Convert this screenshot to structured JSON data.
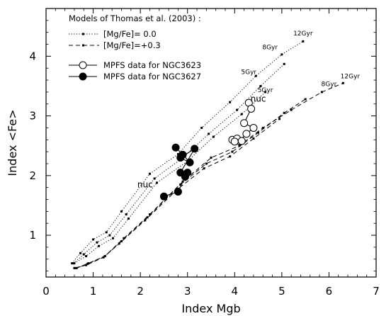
{
  "chart_data": {
    "type": "scatter",
    "xlabel": "Index Mgb",
    "ylabel": "Index <Fe>",
    "xlim": [
      0,
      7
    ],
    "ylim": [
      0.3,
      4.8
    ],
    "x_ticks": [
      0,
      1,
      2,
      3,
      4,
      5,
      6,
      7
    ],
    "y_ticks": [
      1,
      2,
      3,
      4
    ],
    "grid": false,
    "legend": {
      "title": "Models of Thomas et al. (2003) :",
      "placement": "top-left",
      "entries": [
        {
          "label": "[Mg/Fe]= 0.0",
          "style": "dotted"
        },
        {
          "label": "[Mg/Fe]=+0.3",
          "style": "dashed"
        },
        {
          "label": "MPFS data for NGC3623",
          "style": "open-circle"
        },
        {
          "label": "MPFS data for NGC3627",
          "style": "filled-circle"
        }
      ]
    },
    "model_tracks": [
      {
        "group": "[Mg/Fe]= 0.0",
        "style": "dotted",
        "x": [
          0.55,
          0.73,
          1.0,
          1.28,
          1.6,
          2.2,
          2.8,
          3.3,
          3.9,
          4.45,
          5.0,
          5.45
        ],
        "y": [
          0.53,
          0.7,
          0.93,
          1.05,
          1.4,
          2.03,
          2.36,
          2.8,
          3.23,
          3.67,
          4.03,
          4.25
        ]
      },
      {
        "group": "[Mg/Fe]= 0.0",
        "style": "dotted",
        "x": [
          0.58,
          0.8,
          1.08,
          1.35,
          1.7,
          2.3,
          2.9,
          3.45,
          4.05,
          4.55,
          5.05
        ],
        "y": [
          0.53,
          0.68,
          0.88,
          1.0,
          1.35,
          1.95,
          2.3,
          2.7,
          3.1,
          3.5,
          3.87
        ]
      },
      {
        "group": "[Mg/Fe]= 0.0",
        "style": "dotted",
        "x": [
          0.6,
          0.85,
          1.12,
          1.42,
          1.75,
          2.35,
          3.0,
          3.55,
          4.15,
          4.65
        ],
        "y": [
          0.53,
          0.65,
          0.82,
          0.95,
          1.28,
          1.88,
          2.24,
          2.65,
          3.03,
          3.4
        ]
      },
      {
        "group": "[Mg/Fe]=+0.3",
        "style": "dashed",
        "x": [
          0.65,
          0.9,
          1.25,
          1.65,
          2.2,
          2.9,
          3.5,
          4.1,
          4.6,
          5.2,
          5.85,
          6.3
        ],
        "y": [
          0.45,
          0.53,
          0.65,
          0.95,
          1.35,
          1.9,
          2.3,
          2.5,
          2.8,
          3.1,
          3.4,
          3.55
        ]
      },
      {
        "group": "[Mg/Fe]=+0.3",
        "style": "dashed",
        "x": [
          0.62,
          0.88,
          1.25,
          1.6,
          2.15,
          2.85,
          3.4,
          3.95,
          4.5,
          5.05,
          5.5
        ],
        "y": [
          0.45,
          0.52,
          0.65,
          0.9,
          1.3,
          1.85,
          2.2,
          2.4,
          2.72,
          3.05,
          3.28
        ]
      },
      {
        "group": "[Mg/Fe]=+0.3",
        "style": "dashed",
        "x": [
          0.6,
          0.85,
          1.22,
          1.55,
          2.1,
          2.8,
          3.35,
          3.9,
          4.4,
          4.95
        ],
        "y": [
          0.45,
          0.5,
          0.63,
          0.86,
          1.25,
          1.78,
          2.12,
          2.32,
          2.62,
          2.95
        ]
      }
    ],
    "model_labels": [
      {
        "text": "12Gyr",
        "x": 5.45,
        "y": 4.35
      },
      {
        "text": "8Gyr",
        "x": 4.75,
        "y": 4.12
      },
      {
        "text": "5Gyr",
        "x": 4.3,
        "y": 3.7
      },
      {
        "text": "5Gyr",
        "x": 4.65,
        "y": 3.4
      },
      {
        "text": "8Gyr",
        "x": 6.0,
        "y": 3.5
      },
      {
        "text": "12Gyr",
        "x": 6.45,
        "y": 3.63
      }
    ],
    "series": [
      {
        "name": "MPFS data for NGC3623",
        "marker": "open-circle",
        "x": [
          4.3,
          4.35,
          4.2,
          4.4,
          4.25,
          4.1,
          3.95,
          4.05,
          4.0,
          4.15
        ],
        "y": [
          3.22,
          3.12,
          2.88,
          2.8,
          2.7,
          2.58,
          2.6,
          2.62,
          2.57,
          2.58
        ]
      },
      {
        "name": "MPFS data for NGC3627",
        "marker": "filled-circle",
        "x": [
          2.75,
          2.9,
          3.05,
          2.85,
          3.15,
          2.85,
          3.0,
          2.95,
          2.8,
          2.5
        ],
        "y": [
          2.47,
          2.35,
          2.22,
          2.3,
          2.45,
          2.05,
          2.05,
          1.98,
          1.73,
          1.65
        ]
      }
    ],
    "annotations": [
      {
        "text": "nuc",
        "x": 4.5,
        "y": 3.24
      },
      {
        "text": "nuc",
        "x": 2.1,
        "y": 1.8
      }
    ]
  }
}
